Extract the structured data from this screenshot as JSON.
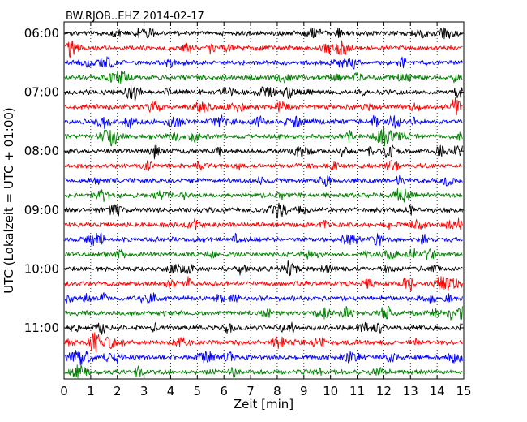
{
  "chart_data": {
    "type": "line",
    "title": "BW.RJOB..EHZ 2014-02-17",
    "xlabel": "Zeit  [min]",
    "ylabel": "UTC (Lokalzeit = UTC + 01:00)",
    "xlim": [
      0,
      15
    ],
    "xticks": [
      "0",
      "1",
      "2",
      "3",
      "4",
      "5",
      "6",
      "7",
      "8",
      "9",
      "10",
      "11",
      "12",
      "13",
      "14",
      "15"
    ],
    "yticks": [
      "06:00",
      "07:00",
      "08:00",
      "09:00",
      "10:00",
      "11:00"
    ],
    "grid": "vertical-dotted",
    "trace_colors": [
      "#000000",
      "#ff0000",
      "#0000ff",
      "#008000"
    ],
    "trace_starts": [
      "06:00",
      "06:15",
      "06:30",
      "06:45",
      "07:00",
      "07:15",
      "07:30",
      "07:45",
      "08:00",
      "08:15",
      "08:30",
      "08:45",
      "09:00",
      "09:15",
      "09:30",
      "09:45",
      "10:00",
      "10:15",
      "10:30",
      "10:45",
      "11:00",
      "11:15",
      "11:30",
      "11:45"
    ]
  }
}
